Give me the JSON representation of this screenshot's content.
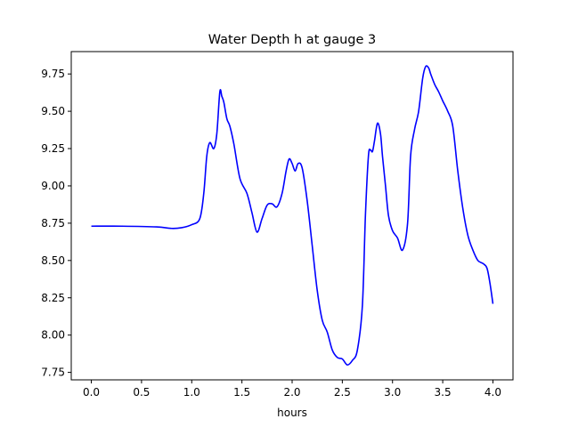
{
  "chart_data": {
    "type": "line",
    "title": "Water Depth h at gauge 3",
    "xlabel": "hours",
    "ylabel": "",
    "xlim": [
      -0.2,
      4.2
    ],
    "ylim": [
      7.7,
      9.9
    ],
    "xticks": [
      0.0,
      0.5,
      1.0,
      1.5,
      2.0,
      2.5,
      3.0,
      3.5,
      4.0
    ],
    "xtick_labels": [
      "0.0",
      "0.5",
      "1.0",
      "1.5",
      "2.0",
      "2.5",
      "3.0",
      "3.5",
      "4.0"
    ],
    "yticks": [
      7.75,
      8.0,
      8.25,
      8.5,
      8.75,
      9.0,
      9.25,
      9.5,
      9.75
    ],
    "ytick_labels": [
      "7.75",
      "8.00",
      "8.25",
      "8.50",
      "8.75",
      "9.00",
      "9.25",
      "9.50",
      "9.75"
    ],
    "grid": false,
    "series": [
      {
        "color": "#0000ff",
        "x": [
          0.0,
          0.3,
          0.65,
          0.8,
          0.9,
          1.0,
          1.08,
          1.12,
          1.15,
          1.18,
          1.22,
          1.25,
          1.28,
          1.3,
          1.32,
          1.35,
          1.38,
          1.42,
          1.48,
          1.55,
          1.6,
          1.65,
          1.7,
          1.75,
          1.8,
          1.85,
          1.9,
          1.94,
          1.97,
          2.0,
          2.03,
          2.06,
          2.1,
          2.15,
          2.2,
          2.25,
          2.3,
          2.35,
          2.4,
          2.45,
          2.5,
          2.55,
          2.6,
          2.65,
          2.7,
          2.73,
          2.76,
          2.78,
          2.8,
          2.82,
          2.85,
          2.88,
          2.9,
          2.93,
          2.96,
          3.0,
          3.05,
          3.1,
          3.15,
          3.18,
          3.22,
          3.26,
          3.3,
          3.33,
          3.36,
          3.38,
          3.42,
          3.46,
          3.5,
          3.55,
          3.6,
          3.65,
          3.7,
          3.75,
          3.8,
          3.85,
          3.9,
          3.94,
          3.97,
          4.0
        ],
        "y": [
          8.73,
          8.73,
          8.725,
          8.715,
          8.72,
          8.74,
          8.78,
          8.95,
          9.2,
          9.29,
          9.25,
          9.35,
          9.63,
          9.6,
          9.56,
          9.45,
          9.4,
          9.28,
          9.05,
          8.95,
          8.82,
          8.69,
          8.78,
          8.87,
          8.88,
          8.86,
          8.95,
          9.1,
          9.18,
          9.15,
          9.1,
          9.15,
          9.12,
          8.9,
          8.6,
          8.3,
          8.1,
          8.02,
          7.9,
          7.85,
          7.84,
          7.8,
          7.83,
          7.9,
          8.2,
          8.8,
          9.2,
          9.24,
          9.23,
          9.3,
          9.42,
          9.35,
          9.2,
          9.0,
          8.8,
          8.7,
          8.65,
          8.57,
          8.75,
          9.2,
          9.38,
          9.5,
          9.72,
          9.8,
          9.79,
          9.75,
          9.68,
          9.63,
          9.57,
          9.5,
          9.4,
          9.1,
          8.85,
          8.67,
          8.57,
          8.5,
          8.48,
          8.45,
          8.35,
          8.21
        ]
      }
    ]
  }
}
